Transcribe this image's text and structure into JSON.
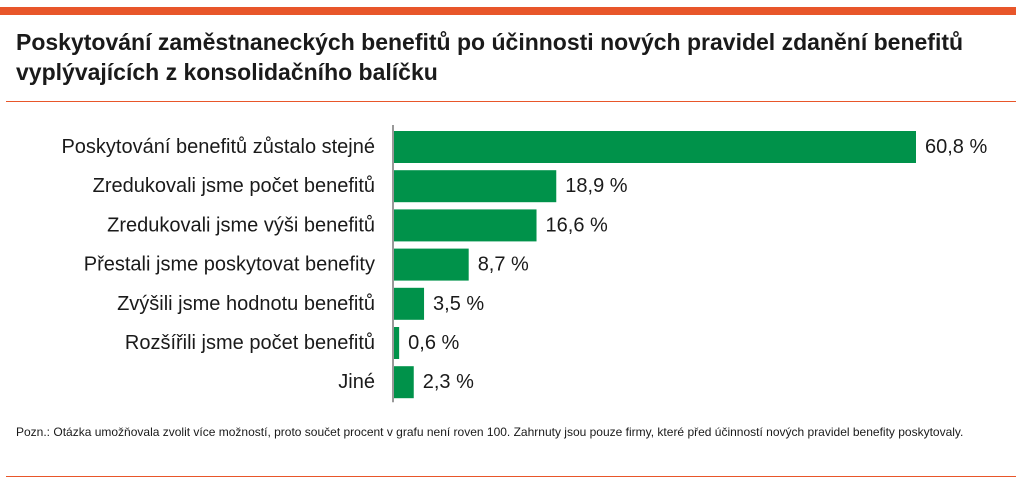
{
  "colors": {
    "accent": "#e8562a",
    "bar": "#00924a",
    "axis": "#333333",
    "rule": "#e8562a"
  },
  "chart_data": {
    "type": "bar",
    "orientation": "horizontal",
    "title": "Poskytování zaměstnaneckých benefitů po účinnosti nových pravidel zdanění benefitů vyplývajících z konsolidačního balíčku",
    "categories": [
      "Poskytování benefitů zůstalo stejné",
      "Zredukovali jsme počet benefitů",
      "Zredukovali jsme výši benefitů",
      "Přestali jsme poskytovat benefity",
      "Zvýšili jsme hodnotu benefitů",
      "Rozšířili jsme počet benefitů",
      "Jiné"
    ],
    "values": [
      60.8,
      18.9,
      16.6,
      8.7,
      3.5,
      0.6,
      2.3
    ],
    "value_labels": [
      "60,8 %",
      "18,9 %",
      "16,6 %",
      "8,7 %",
      "3,5 %",
      "0,6 %",
      "2,3 %"
    ],
    "xlim": [
      0,
      60.8
    ],
    "grid": false,
    "legend": "none"
  },
  "note": "Pozn.: Otázka umožňovala zvolit více možností, proto součet procent v grafu není roven 100. Zahrnuty jsou pouze firmy, které před účinností nových pravidel benefity poskytovaly."
}
